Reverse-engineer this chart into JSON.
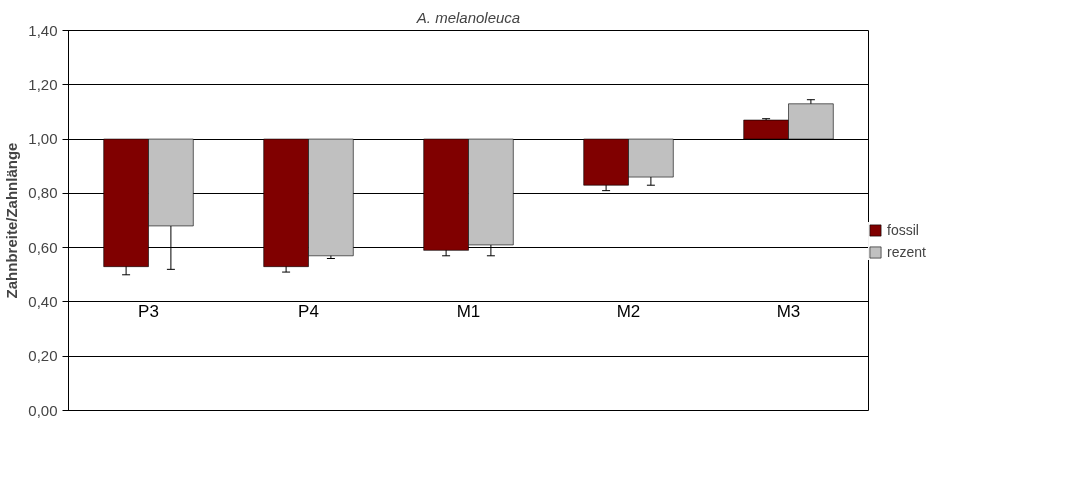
{
  "chart_data": {
    "type": "bar",
    "title": "A. melanoleuca",
    "ylabel": "Zahnbreite/Zahnlänge",
    "categories": [
      "P3",
      "P4",
      "M1",
      "M2",
      "M3"
    ],
    "series": [
      {
        "name": "fossil",
        "color": "#800000",
        "base": [
          1.0,
          1.0,
          1.0,
          1.0,
          1.0
        ],
        "values": [
          -0.47,
          -0.47,
          -0.41,
          -0.17,
          0.07
        ],
        "errors": [
          0.03,
          0.02,
          0.02,
          0.02,
          0.005
        ]
      },
      {
        "name": "rezent",
        "color": "#c0c0c0",
        "base": [
          1.0,
          1.0,
          1.0,
          1.0,
          1.0
        ],
        "values": [
          -0.32,
          -0.43,
          -0.39,
          -0.14,
          0.13
        ],
        "errors": [
          0.16,
          0.01,
          0.04,
          0.03,
          0.015
        ]
      }
    ],
    "ylim": [
      0,
      1.4
    ],
    "yticks": [
      {
        "value": 0,
        "label": "0,00"
      },
      {
        "value": 0.2,
        "label": "0,20"
      },
      {
        "value": 0.4,
        "label": "0,40"
      },
      {
        "value": 0.6,
        "label": "0,60"
      },
      {
        "value": 0.8,
        "label": "0,80"
      },
      {
        "value": 1.0,
        "label": "1,00"
      },
      {
        "value": 1.2,
        "label": "1,20"
      },
      {
        "value": 1.4,
        "label": "1,40"
      }
    ],
    "grid": "y",
    "legend": "right"
  }
}
